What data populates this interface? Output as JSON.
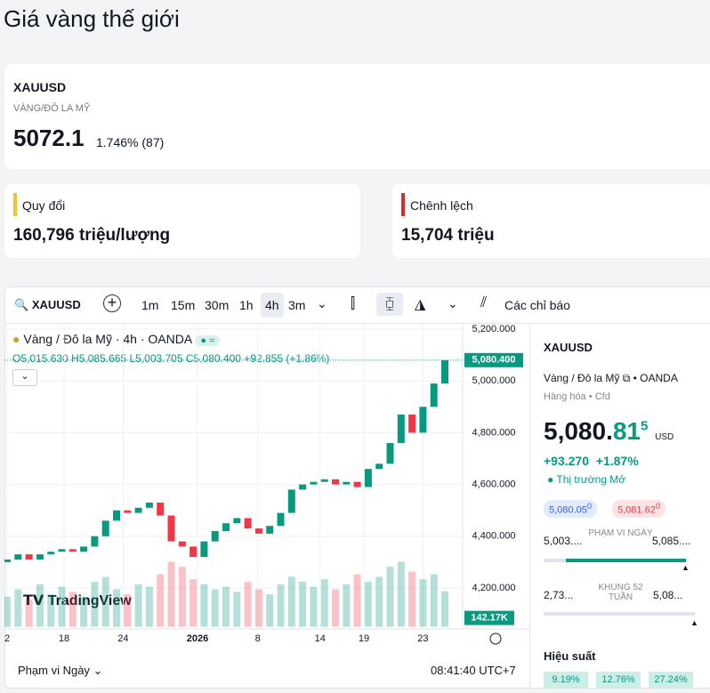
{
  "header": {
    "title": "Giá vàng thế giới"
  },
  "quote": {
    "symbol": "XAUUSD",
    "name": "VÀNG/ĐÔ LA MỸ",
    "price": "5072.1",
    "change": "1.746% (87)"
  },
  "cards": [
    {
      "label": "Quy đổi",
      "value": "160,796 triệu/lượng",
      "color": "#f2c12e"
    },
    {
      "label": "Chênh lệch",
      "value": "15,704 triệu",
      "color": "#d32f2f"
    }
  ],
  "toolbar": {
    "symbol": "XAUUSD",
    "intervals": [
      "1m",
      "15m",
      "30m",
      "1h",
      "4h",
      "3m"
    ],
    "indicators": "Các chỉ báo"
  },
  "legend": {
    "title": "Vàng / Đô la Mỹ · 4h · OANDA",
    "open": "O5,015.630",
    "high": "H5,085.665",
    "low": "L5,003.705",
    "close": "C5,080.400",
    "change": "+92.855 (+1.86%)"
  },
  "watermark": "TradingView",
  "chart_data": {
    "type": "candlestick",
    "open": [
      4300,
      4310,
      4330,
      4310,
      4330,
      4340,
      4350,
      4340,
      4360,
      4400,
      4460,
      4500,
      4490,
      4510,
      4530,
      4480,
      4380,
      4360,
      4320,
      4380,
      4420,
      4450,
      4470,
      4430,
      4410,
      4440,
      4490,
      4580,
      4600,
      4610,
      4620,
      4600,
      4610,
      4590,
      4660,
      4680,
      4760,
      4870,
      4800,
      4900,
      4990
    ],
    "close": [
      4310,
      4330,
      4310,
      4330,
      4340,
      4350,
      4340,
      4360,
      4400,
      4460,
      4500,
      4490,
      4510,
      4530,
      4480,
      4380,
      4360,
      4320,
      4380,
      4420,
      4450,
      4470,
      4430,
      4410,
      4440,
      4490,
      4580,
      4600,
      4610,
      4620,
      4600,
      4610,
      4590,
      4660,
      4680,
      4760,
      4870,
      4800,
      4900,
      4990,
      5080
    ],
    "volume": [
      120,
      150,
      110,
      170,
      130,
      160,
      140,
      120,
      180,
      200,
      150,
      130,
      170,
      160,
      210,
      260,
      240,
      190,
      170,
      150,
      160,
      140,
      180,
      150,
      130,
      170,
      200,
      180,
      160,
      190,
      150,
      170,
      210,
      180,
      200,
      240,
      260,
      220,
      190,
      210,
      142.17
    ],
    "volume_lim": [
      0,
      320
    ],
    "xlim": [
      0,
      40
    ],
    "xticks": [
      {
        "value": 0,
        "label": "2"
      },
      {
        "value": 5.2,
        "label": "18"
      },
      {
        "value": 10.6,
        "label": "24"
      },
      {
        "value": 17.4,
        "label": "2026"
      },
      {
        "value": 22.9,
        "label": "8"
      },
      {
        "value": 28.6,
        "label": "14"
      },
      {
        "value": 32.6,
        "label": "19"
      },
      {
        "value": 38,
        "label": "23"
      }
    ],
    "ylim": [
      4050,
      5220
    ],
    "yticks": [
      {
        "value": 4200,
        "label": "4,200.000"
      },
      {
        "value": 4400,
        "label": "4,400.000"
      },
      {
        "value": 4600,
        "label": "4,600.000"
      },
      {
        "value": 4800,
        "label": "4,800.000"
      },
      {
        "value": 5000,
        "label": "5,000.000"
      },
      {
        "value": 5200,
        "label": "5,200.000"
      }
    ],
    "last_price": {
      "value": 5080.4,
      "label": "5,080.400"
    },
    "last_volume": {
      "value": 142.17,
      "label": "142.17K"
    },
    "up_color": "#089981",
    "down_color": "#f23645"
  },
  "footer": {
    "range": "Phạm vi Ngày",
    "time": "08:41:40 UTC+7"
  },
  "panel": {
    "symbol": "XAUUSD",
    "name": "Vàng / Đô la Mỹ",
    "exchange": "OANDA",
    "category": "Hàng hóa",
    "kind": "Cfd",
    "price_int": "5,080.",
    "price_dec": "81",
    "price_sup": "5",
    "currency": "USD",
    "change": "+93.270",
    "change_pct": "+1.87%",
    "status": "Thị trường Mở",
    "bid": "5,080.05",
    "bid_sup": "0",
    "ask": "5,081.62",
    "ask_sup": "0",
    "day_low": "5,003....",
    "day_label": "PHẠM VI NGÀY",
    "day_high": "5,085....",
    "week_low": "2,73...",
    "week_label": "KHUNG 52 TUẦN",
    "week_high": "5,08...",
    "perf_title": "Hiệu suất",
    "perf": [
      "9.19%",
      "12.76%",
      "27.24%"
    ]
  }
}
